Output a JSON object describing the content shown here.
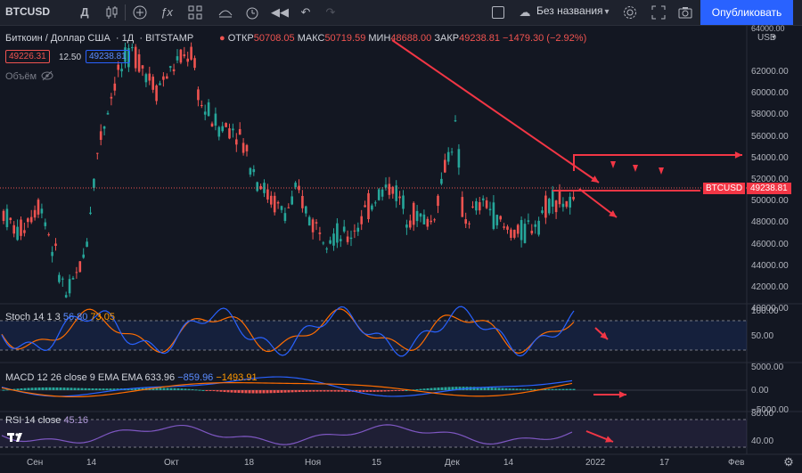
{
  "toolbar": {
    "symbol": "BTCUSD",
    "interval_icon": "Д",
    "layout_name": "Без названия",
    "publish_label": "Опубликовать",
    "icons": [
      "interval",
      "bar-style-icon",
      "add-indicator-icon",
      "indicators-icon",
      "templates-icon",
      "alert-icon",
      "replay-icon",
      "undo-icon",
      "redo-icon",
      "settings-icon",
      "fullscreen-icon",
      "snapshot-icon"
    ]
  },
  "legend": {
    "title": "Биткоин / Доллар США",
    "interval": "1Д",
    "exchange": "BITSTAMP",
    "open_label": "ОТКР",
    "open": "50708.05",
    "high_label": "МАКС",
    "high": "50719.59",
    "low_label": "МИН",
    "low": "48688.00",
    "close_label": "ЗАКР",
    "close": "49238.81",
    "change": "−1479.30 (−2.92%)",
    "bid": "49226.31",
    "spread": "12.50",
    "ask": "49238.81",
    "volume_label": "Объём"
  },
  "price_axis": {
    "currency": "USD",
    "top_partial": "64000.00",
    "ticks": [
      "62000.00",
      "60000.00",
      "58000.00",
      "56000.00",
      "54000.00",
      "52000.00",
      "50000.00",
      "48000.00",
      "46000.00",
      "44000.00",
      "42000.00",
      "40000.00"
    ],
    "current_symbol": "BTCUSD",
    "current_price": "49238.81"
  },
  "time_axis": {
    "labels": [
      "Сен",
      "14",
      "Окт",
      "18",
      "Ноя",
      "15",
      "Дек",
      "14",
      "2022",
      "17",
      "Фев"
    ]
  },
  "indicators": {
    "stoch": {
      "label": "Stoch 14 1 3",
      "k": "56.80",
      "d": "73.05",
      "ticks": [
        "100.00",
        "50.00"
      ]
    },
    "macd": {
      "label": "MACD 12 26 close 9 EMA EMA",
      "hist": "633.96",
      "macd": "−859.96",
      "signal": "−1493.91",
      "ticks": [
        "5000.00",
        "0.00",
        "−5000.00"
      ]
    },
    "rsi": {
      "label": "RSI 14 close",
      "value": "45.16",
      "ticks": [
        "80.00",
        "40.00"
      ]
    }
  },
  "colors": {
    "background": "#131722",
    "up": "#26a69a",
    "down": "#ef5350",
    "annotation": "#f23645",
    "stoch_k": "#2962ff",
    "stoch_d": "#ff6d00",
    "rsi": "#7e57c2",
    "accent": "#2962ff"
  },
  "chart_data": {
    "type": "candlestick",
    "title": "Биткоин / Доллар США",
    "ylabel": "USD",
    "ylim": [
      39000,
      64000
    ],
    "x": [
      "Сен",
      "14",
      "Окт",
      "18",
      "Ноя",
      "15",
      "Дек",
      "14",
      "2022"
    ],
    "close_trend": [
      49500,
      46000,
      43500,
      61500,
      64500,
      60000,
      48500,
      50500,
      49239
    ]
  }
}
